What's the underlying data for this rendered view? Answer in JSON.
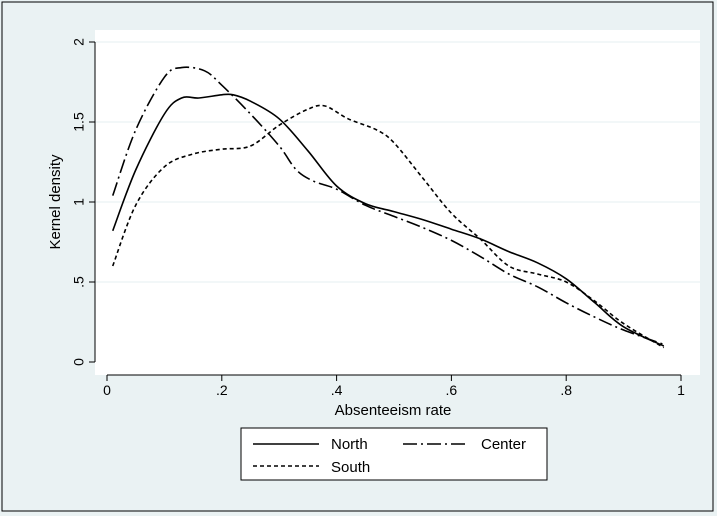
{
  "colors": {
    "background": "#eaf2f3",
    "plot_region": "#ffffff",
    "gridline": "#eaf2f3",
    "line": "#000000"
  },
  "chart_data": {
    "type": "line",
    "title": "",
    "xlabel": "Absenteeism rate",
    "ylabel": "Kernel density",
    "xlim": [
      0,
      1
    ],
    "ylim": [
      0,
      2
    ],
    "x_ticks": [
      0,
      0.2,
      0.4,
      0.6,
      0.8,
      1
    ],
    "x_tick_labels": [
      "0",
      ".2",
      ".4",
      ".6",
      ".8",
      "1"
    ],
    "y_ticks": [
      0,
      0.5,
      1,
      1.5,
      2
    ],
    "y_tick_labels": [
      "0",
      ".5",
      "1",
      "1.5",
      "2"
    ],
    "grid": true,
    "legend_position": "bottom",
    "series": [
      {
        "name": "North",
        "line_style": "solid",
        "x": [
          0.01,
          0.05,
          0.1,
          0.13,
          0.16,
          0.2,
          0.22,
          0.25,
          0.3,
          0.35,
          0.4,
          0.45,
          0.5,
          0.55,
          0.6,
          0.65,
          0.7,
          0.75,
          0.8,
          0.85,
          0.9,
          0.97
        ],
        "y": [
          0.82,
          1.2,
          1.55,
          1.65,
          1.65,
          1.67,
          1.67,
          1.63,
          1.52,
          1.32,
          1.1,
          0.99,
          0.94,
          0.89,
          0.83,
          0.77,
          0.69,
          0.62,
          0.52,
          0.37,
          0.22,
          0.1
        ]
      },
      {
        "name": "Center",
        "line_style": "dash-dot",
        "x": [
          0.01,
          0.05,
          0.1,
          0.13,
          0.17,
          0.2,
          0.25,
          0.3,
          0.33,
          0.36,
          0.4,
          0.45,
          0.5,
          0.55,
          0.6,
          0.65,
          0.7,
          0.75,
          0.8,
          0.85,
          0.9,
          0.97
        ],
        "y": [
          1.04,
          1.45,
          1.78,
          1.84,
          1.82,
          1.73,
          1.55,
          1.35,
          1.2,
          1.13,
          1.08,
          0.98,
          0.91,
          0.84,
          0.76,
          0.66,
          0.55,
          0.47,
          0.37,
          0.28,
          0.2,
          0.11
        ]
      },
      {
        "name": "South",
        "line_style": "dash",
        "x": [
          0.01,
          0.05,
          0.1,
          0.15,
          0.2,
          0.25,
          0.3,
          0.35,
          0.38,
          0.42,
          0.47,
          0.5,
          0.55,
          0.6,
          0.65,
          0.7,
          0.75,
          0.8,
          0.85,
          0.9,
          0.97
        ],
        "y": [
          0.6,
          0.98,
          1.22,
          1.3,
          1.33,
          1.35,
          1.48,
          1.58,
          1.6,
          1.52,
          1.45,
          1.37,
          1.15,
          0.93,
          0.77,
          0.6,
          0.55,
          0.5,
          0.38,
          0.24,
          0.09
        ]
      }
    ]
  }
}
